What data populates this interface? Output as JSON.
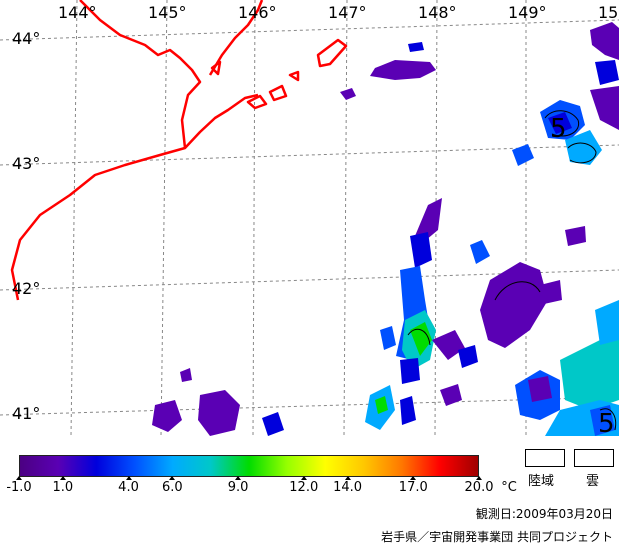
{
  "map": {
    "longitude_labels": [
      "144°",
      "145°",
      "146°",
      "147°",
      "148°",
      "149°",
      "15"
    ],
    "latitude_labels": [
      "44°",
      "43°",
      "42°",
      "41°"
    ],
    "sst_contour_labels": [
      "5",
      "5"
    ],
    "coastline_color": "#ff0000",
    "grid_color": "#888888"
  },
  "legend": {
    "colorbar_stops": [
      "#4b0082",
      "#5a00b4",
      "#0000dc",
      "#0050ff",
      "#00aaff",
      "#00c8c8",
      "#00dc00",
      "#96ff00",
      "#ffff00",
      "#ffc800",
      "#ff7800",
      "#ff0000",
      "#a00000"
    ],
    "tick_labels": [
      "-1.0",
      "1.0",
      "4.0",
      "6.0",
      "9.0",
      "12.0",
      "14.0",
      "17.0",
      "20.0"
    ],
    "unit": "°C",
    "land_label": "陸域",
    "cloud_label": "雲"
  },
  "footer": {
    "observation_date": "観測日:2009年03月20日",
    "credit": "岩手県／宇宙開発事業団 共同プロジェクト"
  }
}
